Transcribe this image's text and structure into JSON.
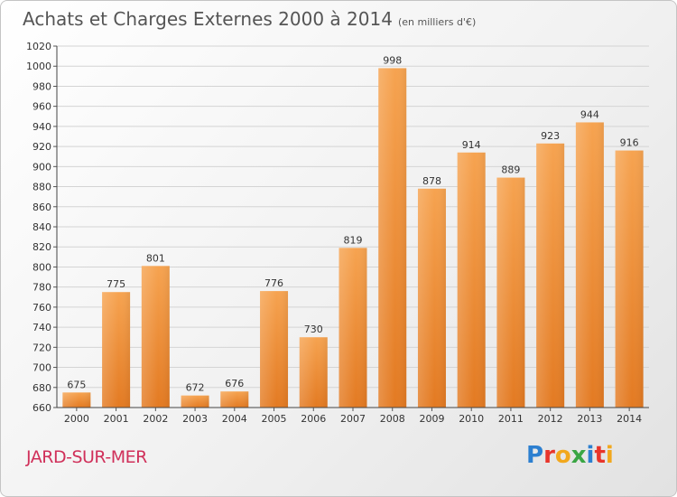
{
  "chart_data": {
    "type": "bar",
    "title": "Achats et Charges Externes 2000 à 2014",
    "subtitle": "(en milliers d'€)",
    "categories": [
      "2000",
      "2001",
      "2002",
      "2003",
      "2004",
      "2005",
      "2006",
      "2007",
      "2008",
      "2009",
      "2010",
      "2011",
      "2012",
      "2013",
      "2014"
    ],
    "values": [
      675,
      775,
      801,
      672,
      676,
      776,
      730,
      819,
      998,
      878,
      914,
      889,
      923,
      944,
      916
    ],
    "ylim": [
      660,
      1020
    ],
    "yticks": [
      660,
      680,
      700,
      720,
      740,
      760,
      780,
      800,
      820,
      840,
      860,
      880,
      900,
      920,
      940,
      960,
      980,
      1000,
      1020
    ],
    "grid": true,
    "bar_color": "#f0913a"
  },
  "footer": {
    "city": "JARD-SUR-MER",
    "logo_letters": [
      "P",
      "r",
      "o",
      "x",
      "i",
      "t",
      "i"
    ],
    "logo_colors": [
      "#2c7fd0",
      "#e8352b",
      "#f2a81d",
      "#3aa644",
      "#2c7fd0",
      "#e8352b",
      "#f2a81d"
    ]
  },
  "colors": {
    "title": "#555555",
    "city": "#d0305a"
  }
}
